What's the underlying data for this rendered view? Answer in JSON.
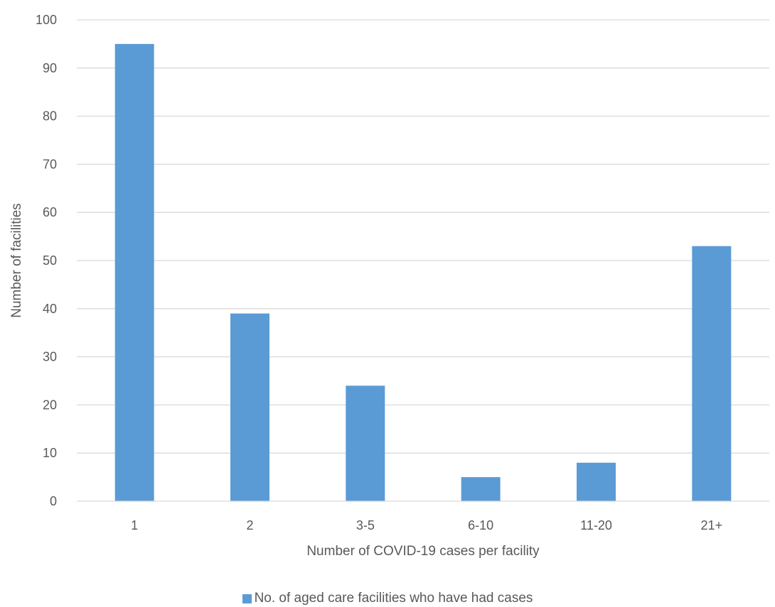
{
  "chart_data": {
    "type": "bar",
    "title": "",
    "xlabel": "Number of COVID-19 cases per facility",
    "ylabel": "Number of facilities",
    "categories": [
      "1",
      "2",
      "3-5",
      "6-10",
      "11-20",
      "21+"
    ],
    "series": [
      {
        "name": "No. of aged care facilities who have had cases",
        "values": [
          95,
          39,
          24,
          5,
          8,
          53
        ],
        "color": "#5b9bd5"
      }
    ],
    "ylim": [
      0,
      100
    ],
    "yticks": [
      0,
      10,
      20,
      30,
      40,
      50,
      60,
      70,
      80,
      90,
      100
    ],
    "grid": true,
    "gridColor": "#d9d9d9",
    "legend_position": "bottom"
  }
}
